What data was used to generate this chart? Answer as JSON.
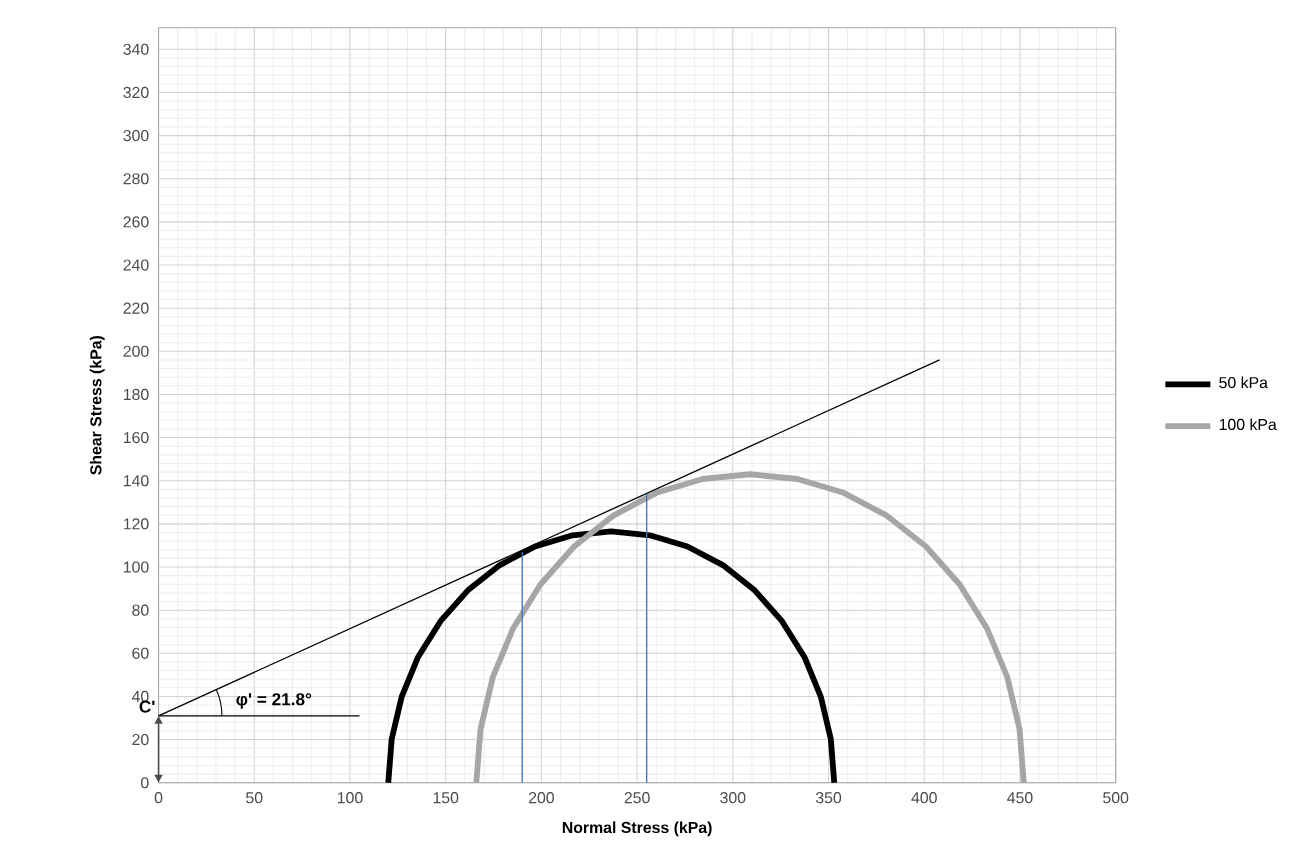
{
  "chart_data": {
    "type": "line",
    "xlabel": "Normal Stress (kPa)",
    "ylabel": "Shear Stress (kPa)",
    "xlim": [
      0,
      500
    ],
    "xticks": [
      0,
      50,
      100,
      150,
      200,
      250,
      300,
      350,
      400,
      450,
      500
    ],
    "ylim": [
      0,
      350
    ],
    "yticks": [
      0,
      20,
      40,
      60,
      80,
      100,
      120,
      140,
      160,
      180,
      200,
      220,
      240,
      260,
      280,
      300,
      320,
      340
    ],
    "grid": true,
    "legend": "right",
    "series": [
      {
        "name": "50 kPa",
        "color": "#000000",
        "x": [
          120,
          121.8,
          127.0,
          135.6,
          147.3,
          161.6,
          178.3,
          196.7,
          216.3,
          236.5,
          256.7,
          276.3,
          294.8,
          311.4,
          325.7,
          337.4,
          346.0,
          351.2,
          353
        ],
        "values": [
          0,
          20.2,
          39.8,
          58.3,
          74.9,
          89.2,
          100.9,
          109.5,
          114.7,
          116.5,
          114.7,
          109.5,
          100.9,
          89.2,
          74.9,
          58.3,
          39.8,
          20.2,
          0
        ]
      },
      {
        "name": "100 kPa",
        "color": "#a6a6a6",
        "x": [
          166,
          168.2,
          174.6,
          185.2,
          199.5,
          217.1,
          237.5,
          260.1,
          284.2,
          309,
          333.8,
          357.9,
          380.5,
          400.9,
          418.5,
          432.8,
          443.4,
          449.8,
          452
        ],
        "values": [
          0,
          24.8,
          48.9,
          71.5,
          91.9,
          109.5,
          123.8,
          134.4,
          140.8,
          143,
          140.8,
          134.4,
          123.8,
          109.5,
          91.9,
          71.5,
          48.9,
          24.8,
          0
        ]
      },
      {
        "color": "#000000",
        "x": [
          0,
          408
        ],
        "values": [
          31,
          196
        ]
      },
      {
        "color": "#4472c4",
        "x": [
          190,
          190
        ],
        "values": [
          0,
          107
        ]
      },
      {
        "color": "#4472c4",
        "x": [
          255,
          255
        ],
        "values": [
          0,
          134
        ]
      },
      {
        "color": "#000000",
        "x": [
          0,
          105
        ],
        "values": [
          31,
          31
        ]
      }
    ],
    "annotations": [
      {
        "text": "C'",
        "x": 0,
        "y": 31
      },
      "φ' = 21.8°"
    ]
  }
}
